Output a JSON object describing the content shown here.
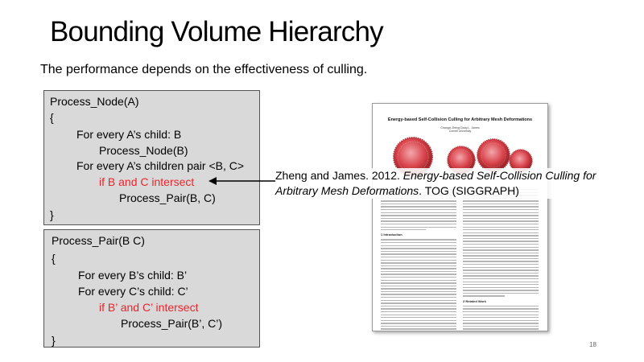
{
  "slide": {
    "title": "Bounding Volume Hierarchy",
    "subtitle": "The performance depends on the effectiveness of culling.",
    "page_number": "18"
  },
  "code1": {
    "l1": "Process_Node(A)",
    "l2": "{",
    "l3": "For every A’s child: B",
    "l4": "Process_Node(B)",
    "l5": "For every A’s children pair <B, C>",
    "l6": "if B and C intersect",
    "l7": "Process_Pair(B, C)",
    "l8": "}"
  },
  "code2": {
    "l1": "Process_Pair(B C)",
    "l2": "{",
    "l3": "For every B’s child: B’",
    "l4": "For every C’s child: C’",
    "l5": "if B’ and C’ intersect",
    "l6": "Process_Pair(B’, C’)",
    "l7": "}"
  },
  "citation": {
    "authors": "Zheng and James. 2012. ",
    "paper_title": "Energy-based Self-Collision Culling for Arbitrary Mesh Deformations",
    "venue": ". TOG (SIGGRAPH)"
  },
  "paper": {
    "title": "Energy-based Self-Collision Culling for Arbitrary Mesh Deformations",
    "authors": "Changxi Zheng        Doug L. James",
    "affiliation": "Cornell University",
    "section1": "1   Introduction",
    "section2": "2   Related Work"
  },
  "colors": {
    "highlight": "#e8262b",
    "code_box": "#d9d9d9",
    "sphere": "#d8424a"
  }
}
